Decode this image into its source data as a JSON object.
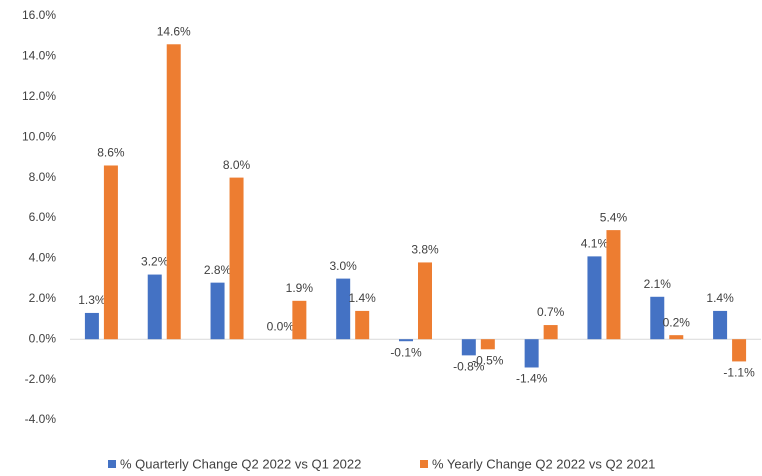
{
  "chart_data": {
    "type": "bar",
    "categories": [
      null,
      null,
      null,
      null,
      null,
      null,
      null,
      null,
      null,
      null,
      null
    ],
    "series": [
      {
        "name": "% Quarterly Change Q2 2022 vs Q1 2022",
        "color": "#4472c4",
        "values": [
          1.3,
          3.2,
          2.8,
          0.0,
          3.0,
          -0.1,
          -0.8,
          -1.4,
          4.1,
          2.1,
          1.4
        ],
        "value_labels": [
          "1.3%",
          "3.2%",
          "2.8%",
          "0.0%",
          "3.0%",
          "-0.1%",
          "-0.8%",
          "-1.4%",
          "4.1%",
          "2.1%",
          "1.4%"
        ]
      },
      {
        "name": "% Yearly Change Q2 2022 vs Q2 2021",
        "color": "#ed7d31",
        "values": [
          8.6,
          14.6,
          8.0,
          1.9,
          1.4,
          3.8,
          -0.5,
          0.7,
          5.4,
          0.2,
          -1.1
        ],
        "value_labels": [
          "8.6%",
          "14.6%",
          "8.0%",
          "1.9%",
          "1.4%",
          "3.8%",
          "-0.5%",
          "0.7%",
          "5.4%",
          "0.2%",
          "-1.1%"
        ]
      }
    ],
    "ylim": [
      -4,
      16
    ],
    "yticks": [
      {
        "value": -4,
        "label": "-4.0%"
      },
      {
        "value": -2,
        "label": "-2.0%"
      },
      {
        "value": 0,
        "label": "0.0%"
      },
      {
        "value": 2,
        "label": "2.0%"
      },
      {
        "value": 4,
        "label": "4.0%"
      },
      {
        "value": 6,
        "label": "6.0%"
      },
      {
        "value": 8,
        "label": "8.0%"
      },
      {
        "value": 10,
        "label": "10.0%"
      },
      {
        "value": 12,
        "label": "12.0%"
      },
      {
        "value": 14,
        "label": "14.0%"
      },
      {
        "value": 16,
        "label": "16.0%"
      }
    ],
    "grid": false,
    "legend": "bottom"
  }
}
